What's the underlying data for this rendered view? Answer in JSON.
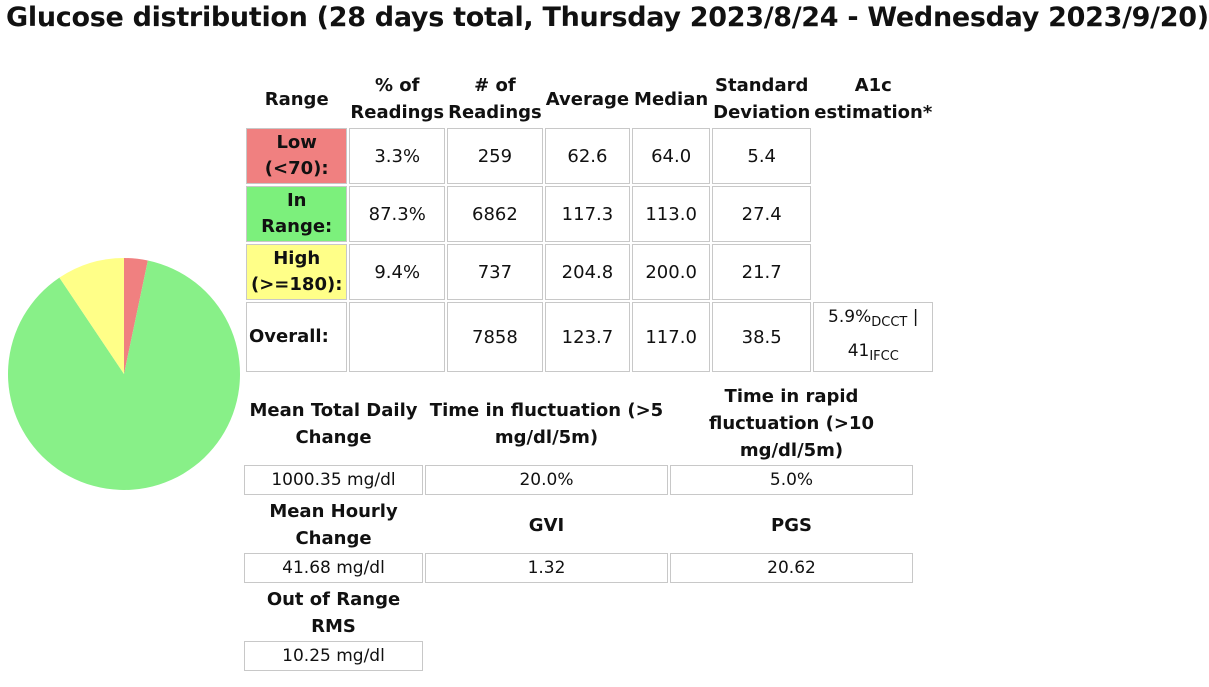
{
  "title": "Glucose distribution (28 days total, Thursday 2023/8/24 - Wednesday 2023/9/20)",
  "table": {
    "headers": {
      "range": "Range",
      "pct": "% of Readings",
      "num": "# of Readings",
      "average": "Average",
      "median": "Median",
      "std": "Standard Deviation",
      "a1c": "A1c estimation*"
    },
    "rows": [
      {
        "label": "Low (<70):",
        "pct": "3.3%",
        "num": "259",
        "average": "62.6",
        "median": "64.0",
        "std": "5.4",
        "color": "#f08080"
      },
      {
        "label": "In Range:",
        "pct": "87.3%",
        "num": "6862",
        "average": "117.3",
        "median": "113.0",
        "std": "27.4",
        "color": "#7cf07c"
      },
      {
        "label": "High (>=180):",
        "pct": "9.4%",
        "num": "737",
        "average": "204.8",
        "median": "200.0",
        "std": "21.7",
        "color": "#ffff88"
      }
    ],
    "overall": {
      "label": "Overall:",
      "num": "7858",
      "average": "123.7",
      "median": "117.0",
      "std": "38.5",
      "a1c_dcct": "5.9%",
      "a1c_dcct_unit": "DCCT",
      "a1c_sep": "|",
      "a1c_ifcc": "41",
      "a1c_ifcc_unit": "IFCC"
    }
  },
  "stats": {
    "mean_total_daily_change": {
      "label": "Mean Total Daily Change",
      "value": "1000.35 mg/dl"
    },
    "time_in_fluctuation": {
      "label": "Time in fluctuation (>5 mg/dl/5m)",
      "value": "20.0%"
    },
    "time_in_rapid_fluctuation": {
      "label": "Time in rapid fluctuation (>10 mg/dl/5m)",
      "value": "5.0%"
    },
    "mean_hourly_change": {
      "label": "Mean Hourly Change",
      "value": "41.68 mg/dl"
    },
    "gvi": {
      "label": "GVI",
      "value": "1.32"
    },
    "pgs": {
      "label": "PGS",
      "value": "20.62"
    },
    "out_of_range_rms": {
      "label": "Out of Range RMS",
      "value": "10.25 mg/dl"
    }
  },
  "chart_data": {
    "type": "pie",
    "slices": [
      {
        "value": 3.3,
        "color": "#f08080"
      },
      {
        "value": 87.3,
        "color": "#88f088"
      },
      {
        "value": 9.4,
        "color": "#ffff88"
      }
    ]
  }
}
